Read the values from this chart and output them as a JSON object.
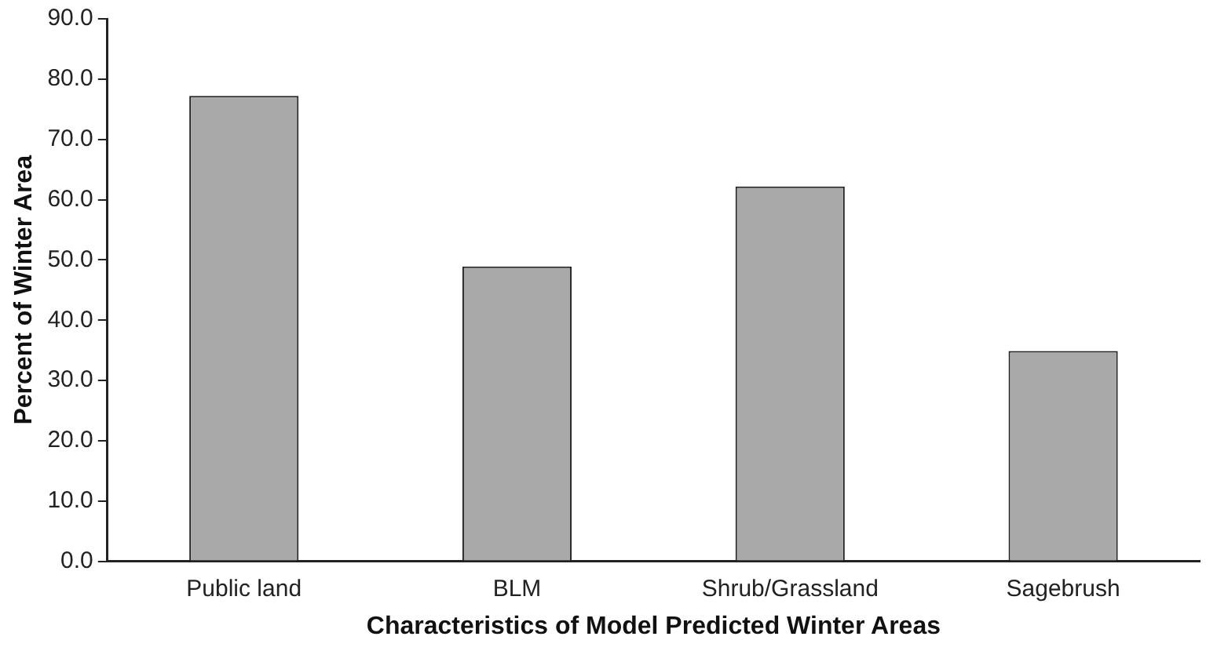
{
  "chart_data": {
    "type": "bar",
    "xlabel": "Characteristics of Model Predicted Winter Areas",
    "ylabel": "Percent of Winter Area",
    "categories": [
      "Public land",
      "BLM",
      "Shrub/Grassland",
      "Sagebrush"
    ],
    "values": [
      77.2,
      48.9,
      62.2,
      34.9
    ],
    "color": "#a9a9a9",
    "ylim": [
      0,
      90
    ],
    "yticks": [
      {
        "value": 0,
        "label": "0.0"
      },
      {
        "value": 10,
        "label": "10.0"
      },
      {
        "value": 20,
        "label": "20.0"
      },
      {
        "value": 30,
        "label": "30.0"
      },
      {
        "value": 40,
        "label": "40.0"
      },
      {
        "value": 50,
        "label": "50.0"
      },
      {
        "value": 60,
        "label": "60.0"
      },
      {
        "value": 70,
        "label": "70.0"
      },
      {
        "value": 80,
        "label": "80.0"
      },
      {
        "value": 90,
        "label": "90.0"
      }
    ],
    "grid": false,
    "legend": false
  }
}
